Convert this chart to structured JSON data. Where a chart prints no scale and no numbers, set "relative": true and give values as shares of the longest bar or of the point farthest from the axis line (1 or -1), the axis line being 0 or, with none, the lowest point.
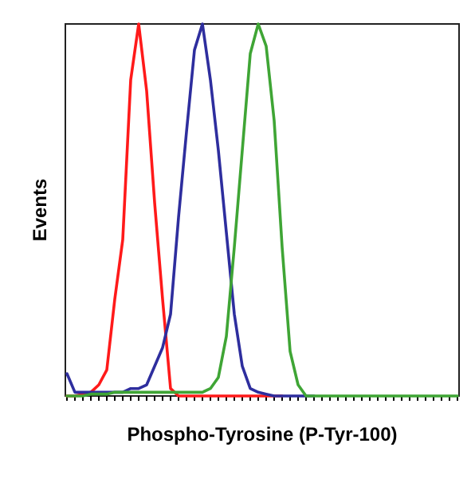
{
  "chart_data": {
    "type": "line",
    "relative": true,
    "xlabel": "Phospho-Tyrosine (P-Tyr-100)",
    "ylabel": "Events",
    "categories": [
      null,
      null,
      null,
      null,
      null,
      null,
      null,
      null,
      null,
      null,
      null,
      null,
      null,
      null,
      null,
      null,
      null,
      null,
      null,
      null,
      null,
      null,
      null,
      null,
      null,
      null,
      null,
      null,
      null,
      null,
      null,
      null,
      null,
      null,
      null,
      null,
      null,
      null,
      null,
      null,
      null,
      null,
      null,
      null,
      null,
      null,
      null,
      null,
      null,
      null
    ],
    "series": [
      {
        "color": "#ff1a1a",
        "values": [
          0,
          0,
          0.005,
          0.01,
          0.03,
          0.07,
          0.26,
          0.42,
          0.85,
          1,
          0.82,
          0.52,
          0.26,
          0.02,
          0,
          0,
          0,
          0,
          0,
          0,
          0,
          0,
          0,
          0,
          0,
          0,
          0,
          0,
          null,
          null,
          null,
          null,
          null,
          null,
          null,
          null,
          null,
          null,
          null,
          null,
          null,
          null,
          null,
          null,
          null,
          null,
          null,
          null,
          null,
          null
        ]
      },
      {
        "color": "#2e2e9e",
        "values": [
          0.06,
          0.01,
          0.01,
          0.01,
          0.01,
          0.01,
          0.01,
          0.01,
          0.02,
          0.02,
          0.03,
          0.08,
          0.13,
          0.22,
          0.48,
          0.71,
          0.93,
          1,
          0.85,
          0.66,
          0.44,
          0.22,
          0.08,
          0.02,
          0.01,
          0.005,
          0,
          0,
          0,
          0,
          0,
          0,
          null,
          null,
          null,
          null,
          null,
          null,
          null,
          null,
          null,
          null,
          null,
          null,
          null,
          null,
          null,
          null,
          null,
          null
        ]
      },
      {
        "color": "#3fa535",
        "values": [
          0,
          0,
          0,
          0.005,
          0.005,
          0.005,
          0.01,
          0.01,
          0.01,
          0.01,
          0.01,
          0.01,
          0.01,
          0.01,
          0.01,
          0.01,
          0.01,
          0.01,
          0.02,
          0.05,
          0.16,
          0.4,
          0.66,
          0.92,
          1,
          0.94,
          0.74,
          0.4,
          0.12,
          0.03,
          0,
          0,
          0,
          0,
          0,
          0,
          0,
          0,
          0,
          0,
          0,
          0,
          0,
          0,
          0,
          0,
          0,
          0,
          0,
          0
        ]
      }
    ]
  }
}
